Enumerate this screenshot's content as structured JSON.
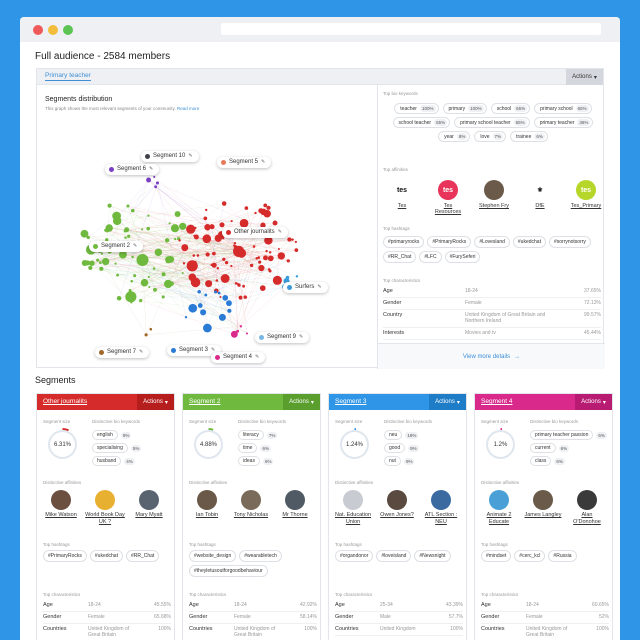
{
  "header": {
    "title": "Full audience - 2584 members"
  },
  "filter": {
    "tab": "Primary teacher",
    "actions": "Actions"
  },
  "distribution": {
    "title": "Segments distribution",
    "subtitle": "This graph shows the most relevant segments of your community.",
    "read_more": "Read more",
    "labels": [
      {
        "name": "Segment 10",
        "color": "#3d4147"
      },
      {
        "name": "Segment 6",
        "color": "#7a3fc4"
      },
      {
        "name": "Segment 5",
        "color": "#e8795a"
      },
      {
        "name": "Segment 2",
        "color": "#6fba3e"
      },
      {
        "name": "Other journalits",
        "color": "#d62b2b"
      },
      {
        "name": "Surfers",
        "color": "#3a9ad9"
      },
      {
        "name": "Segment 9",
        "color": "#79b7e3"
      },
      {
        "name": "Segment 7",
        "color": "#a0682a"
      },
      {
        "name": "Segment 3",
        "color": "#2a7bd6"
      },
      {
        "name": "Segment 4",
        "color": "#d92a8c"
      }
    ]
  },
  "overview": {
    "kw_label": "Top bio keywords",
    "keywords": [
      {
        "t": "teacher",
        "v": "100%"
      },
      {
        "t": "primary",
        "v": "100%"
      },
      {
        "t": "school",
        "v": "65%"
      },
      {
        "t": "primary school",
        "v": "65%"
      },
      {
        "t": "school teacher",
        "v": "65%"
      },
      {
        "t": "primary school teacher",
        "v": "65%"
      },
      {
        "t": "primary teacher",
        "v": "36%"
      },
      {
        "t": "year",
        "v": "8%"
      },
      {
        "t": "love",
        "v": "7%"
      },
      {
        "t": "trainee",
        "v": "6%"
      }
    ],
    "aff_label": "Top affinities",
    "affinities": [
      {
        "n": "Tes",
        "c": "#ffffff",
        "t": "tes",
        "tc": "#111"
      },
      {
        "n": "Tes Resources",
        "c": "#e8345a",
        "t": "tes",
        "tc": "#fff"
      },
      {
        "n": "Stephen Fry",
        "c": "#6b5a4a",
        "t": "",
        "tc": "#fff"
      },
      {
        "n": "DfE",
        "c": "#ffffff",
        "t": "⚜",
        "tc": "#222"
      },
      {
        "n": "Tes_Primary",
        "c": "#b6d62a",
        "t": "tes",
        "tc": "#fff"
      }
    ],
    "tag_label": "Top hashtags",
    "hashtags": [
      "#primaryrocks",
      "#PrimaryRocks",
      "#Lovesland",
      "#ukedchat",
      "#sorrynotsorry",
      "#RR_Chat",
      "#LFC",
      "#FurySeferi"
    ],
    "char_label": "Top characteristics",
    "chars": [
      {
        "k": "Age",
        "v": "18-24",
        "p": "37.65%"
      },
      {
        "k": "Gender",
        "v": "Female",
        "p": "72.13%"
      },
      {
        "k": "Country",
        "v": "United Kingdom of Great Britain and Northern Ireland",
        "p": "99.57%"
      },
      {
        "k": "Interests",
        "v": "Movies and tv",
        "p": "45.44%"
      }
    ],
    "view_more": "View more details"
  },
  "segments_title": "Segments",
  "segments": [
    {
      "name": "Other journalits",
      "color": "#d62b2b",
      "actc": "#b61e1e",
      "size": "6.31%",
      "fill": 0.0631,
      "kws": [
        {
          "t": "english",
          "v": "9%"
        },
        {
          "t": "specialising",
          "v": "5%"
        },
        {
          "t": "husband",
          "v": "4%"
        }
      ],
      "affs": [
        "Mike Watson",
        "World Book Day UK ?",
        "Mary Myatt"
      ],
      "affc": [
        "#6b5040",
        "#e8b030",
        "#5a6470"
      ],
      "tags": [
        "#PrimaryRocks",
        "#ukedchat",
        "#RR_Chat"
      ],
      "chars": [
        {
          "k": "Age",
          "v": "18-24",
          "p": "45.55%"
        },
        {
          "k": "Gender",
          "v": "Female",
          "p": "65.68%"
        },
        {
          "k": "Countries",
          "v": "United Kingdom of Great Britain",
          "p": "100%"
        }
      ]
    },
    {
      "name": "Segment 2",
      "color": "#6fba3e",
      "actc": "#5a9e2e",
      "size": "4.88%",
      "fill": 0.0488,
      "kws": [
        {
          "t": "literacy",
          "v": "7%"
        },
        {
          "t": "time",
          "v": "6%"
        },
        {
          "t": "ideas",
          "v": "6%"
        }
      ],
      "affs": [
        "Ian Tobin",
        "Tony Nicholas",
        "Mr Thorne"
      ],
      "affc": [
        "#6a5848",
        "#7a6a5a",
        "#505a64"
      ],
      "tags": [
        "#website_design",
        "#wearabletech",
        "#theyletusoutforgoodbehaviour"
      ],
      "chars": [
        {
          "k": "Age",
          "v": "18-24",
          "p": "42.92%"
        },
        {
          "k": "Gender",
          "v": "Female",
          "p": "58.14%"
        },
        {
          "k": "Countries",
          "v": "United Kingdom of Great Britain",
          "p": "100%"
        }
      ]
    },
    {
      "name": "Segment 3",
      "color": "#2f95e6",
      "actc": "#1f7cc6",
      "size": "1.24%",
      "fill": 0.0124,
      "kws": [
        {
          "t": "neu",
          "v": "18%"
        },
        {
          "t": "good",
          "v": "9%"
        },
        {
          "t": "nut",
          "v": "9%"
        }
      ],
      "affs": [
        "Nat. Education Union",
        "Owen Jones?",
        "ATL Section : NEU"
      ],
      "affc": [
        "#c8ccd2",
        "#5a4a40",
        "#3a6aa0"
      ],
      "tags": [
        "#organdonor",
        "#loveisland",
        "#Newsnight"
      ],
      "chars": [
        {
          "k": "Age",
          "v": "25-34",
          "p": "43.39%"
        },
        {
          "k": "Gender",
          "v": "Male",
          "p": "57.7%"
        },
        {
          "k": "Countries",
          "v": "United Kingdom",
          "p": "100%"
        }
      ]
    },
    {
      "name": "Segment 4",
      "color": "#d92a8c",
      "actc": "#b81c72",
      "size": "1.2%",
      "fill": 0.012,
      "kws": [
        {
          "t": "primary teacher passion",
          "v": "6%"
        },
        {
          "t": "current",
          "v": "6%"
        },
        {
          "t": "class",
          "v": "6%"
        }
      ],
      "affs": [
        "Animate 2 Educate",
        "James Langley",
        "Alan O'Donohoe"
      ],
      "affc": [
        "#4aa0d6",
        "#6a5a4a",
        "#3a3a3a"
      ],
      "tags": [
        "#mindset",
        "#cerc_kcl",
        "#Russia"
      ],
      "chars": [
        {
          "k": "Age",
          "v": "18-24",
          "p": "60.65%"
        },
        {
          "k": "Gender",
          "v": "Female",
          "p": "52%"
        },
        {
          "k": "Countries",
          "v": "United Kingdom of Great Britain",
          "p": "100%"
        }
      ]
    }
  ],
  "seg_labels": {
    "size": "Segment size",
    "kw": "Distinctive bio keywords",
    "aff": "Distinctive affinities",
    "tags": "Top hashtags",
    "chars": "Top characteristics",
    "actions": "Actions"
  }
}
